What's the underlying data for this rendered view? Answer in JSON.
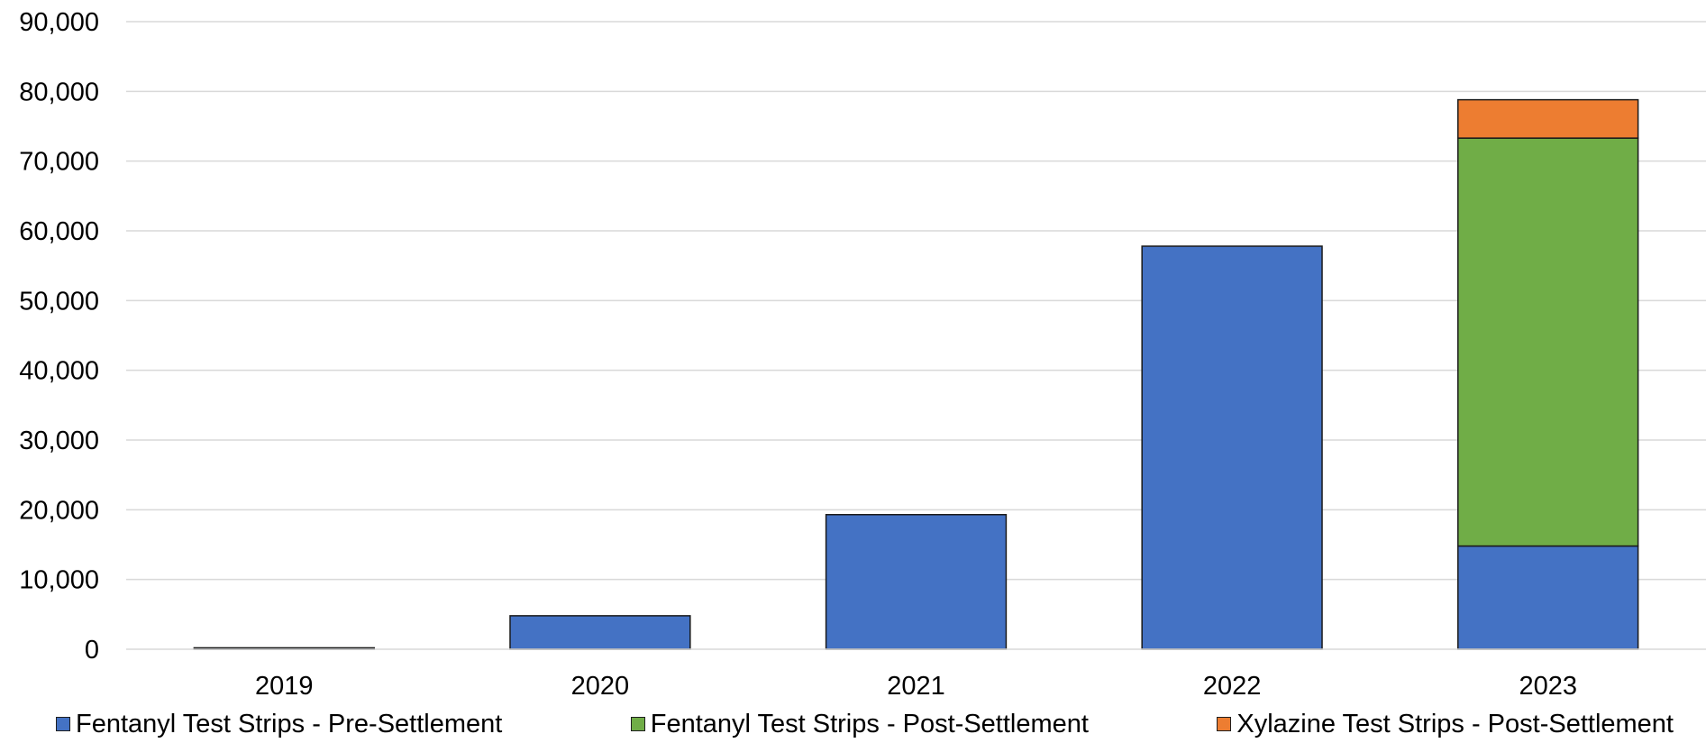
{
  "chart_data": {
    "type": "bar",
    "stacked": true,
    "categories": [
      "2019",
      "2020",
      "2021",
      "2022",
      "2023"
    ],
    "series": [
      {
        "name": "Fentanyl Test Strips - Pre-Settlement",
        "color": "#4472C4",
        "values": [
          200,
          4800,
          19300,
          57800,
          14800
        ]
      },
      {
        "name": "Fentanyl Test Strips - Post-Settlement",
        "color": "#70AD47",
        "values": [
          0,
          0,
          0,
          0,
          58500
        ]
      },
      {
        "name": "Xylazine Test Strips - Post-Settlement",
        "color": "#ED7D31",
        "values": [
          0,
          0,
          0,
          0,
          5500
        ]
      }
    ],
    "title": "",
    "xlabel": "",
    "ylabel": "",
    "ylim": [
      0,
      90000
    ],
    "yticks": [
      "0",
      "10,000",
      "20,000",
      "30,000",
      "40,000",
      "50,000",
      "60,000",
      "70,000",
      "80,000",
      "90,000"
    ],
    "grid": true,
    "legend_position": "bottom"
  }
}
